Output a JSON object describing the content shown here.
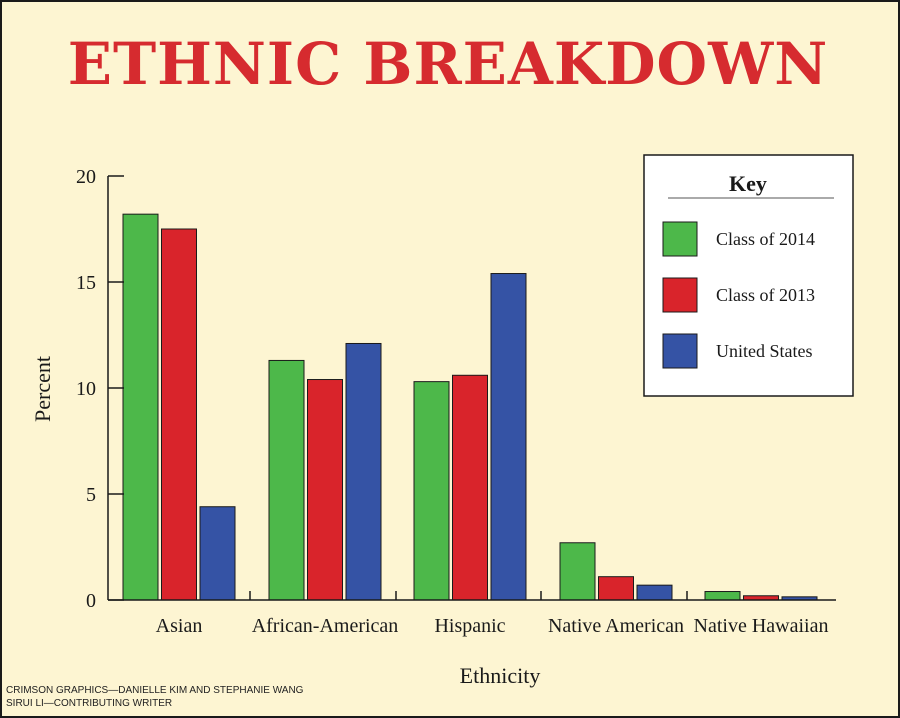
{
  "chart_data": {
    "type": "bar",
    "title": "ETHNIC BREAKDOWN",
    "xlabel": "Ethnicity",
    "ylabel": "Percent",
    "ylim": [
      0,
      20
    ],
    "yticks": [
      0,
      5,
      10,
      15,
      20
    ],
    "grid": false,
    "categories": [
      "Asian",
      "African-American",
      "Hispanic",
      "Native American",
      "Native Hawaiian"
    ],
    "series": [
      {
        "name": "Class of 2014",
        "color": "#4db84a",
        "values": [
          18.2,
          11.3,
          10.3,
          2.7,
          0.4
        ]
      },
      {
        "name": "Class of 2013",
        "color": "#d9242b",
        "values": [
          17.5,
          10.4,
          10.6,
          1.1,
          0.2
        ]
      },
      {
        "name": "United States",
        "color": "#3553a5",
        "values": [
          4.4,
          12.1,
          15.4,
          0.7,
          0.15
        ]
      }
    ],
    "legend": {
      "title": "Key",
      "position": "top-right"
    }
  },
  "credits": [
    "CRIMSON GRAPHICS—DANIELLE KIM AND STEPHANIE WANG",
    "SIRUI LI—CONTRIBUTING WRITER"
  ]
}
